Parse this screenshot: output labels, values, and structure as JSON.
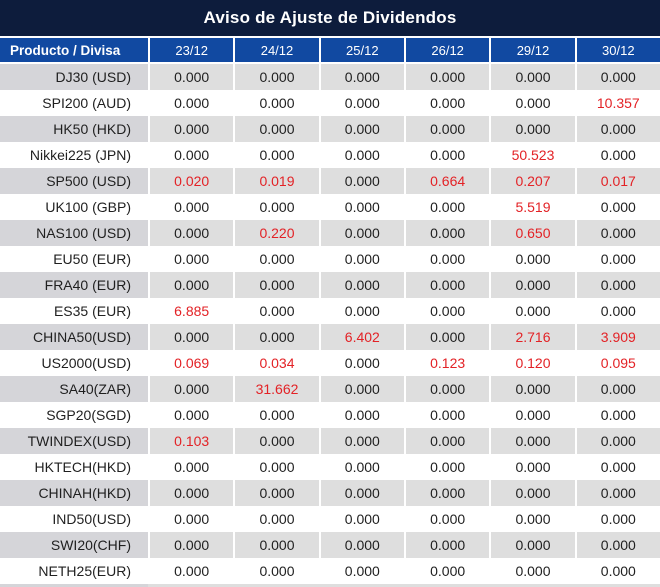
{
  "title": "Aviso de Ajuste de Dividendos",
  "colors": {
    "title_bg": "#0D1C3C",
    "header_bg": "#1149A1",
    "row_gray": "#DEDEDE",
    "row_gray_product": "#D5D5D9",
    "text_dark": "#1F1F1F",
    "value_red": "#E32226",
    "separator": "#FFFFFF"
  },
  "table": {
    "product_header": "Producto / Divisa",
    "date_headers": [
      "23/12",
      "24/12",
      "25/12",
      "26/12",
      "29/12",
      "30/12"
    ],
    "rows": [
      {
        "product": "DJ30 (USD)",
        "values": [
          "0.000",
          "0.000",
          "0.000",
          "0.000",
          "0.000",
          "0.000"
        ],
        "red_cols": []
      },
      {
        "product": "SPI200 (AUD)",
        "values": [
          "0.000",
          "0.000",
          "0.000",
          "0.000",
          "0.000",
          "10.357"
        ],
        "red_cols": [
          5
        ]
      },
      {
        "product": "HK50 (HKD)",
        "values": [
          "0.000",
          "0.000",
          "0.000",
          "0.000",
          "0.000",
          "0.000"
        ],
        "red_cols": []
      },
      {
        "product": "Nikkei225 (JPN)",
        "values": [
          "0.000",
          "0.000",
          "0.000",
          "0.000",
          "50.523",
          "0.000"
        ],
        "red_cols": [
          4
        ]
      },
      {
        "product": "SP500 (USD)",
        "values": [
          "0.020",
          "0.019",
          "0.000",
          "0.664",
          "0.207",
          "0.017"
        ],
        "red_cols": [
          0,
          1,
          3,
          4,
          5
        ]
      },
      {
        "product": "UK100 (GBP)",
        "values": [
          "0.000",
          "0.000",
          "0.000",
          "0.000",
          "5.519",
          "0.000"
        ],
        "red_cols": [
          4
        ]
      },
      {
        "product": "NAS100 (USD)",
        "values": [
          "0.000",
          "0.220",
          "0.000",
          "0.000",
          "0.650",
          "0.000"
        ],
        "red_cols": [
          1,
          4
        ]
      },
      {
        "product": "EU50 (EUR)",
        "values": [
          "0.000",
          "0.000",
          "0.000",
          "0.000",
          "0.000",
          "0.000"
        ],
        "red_cols": []
      },
      {
        "product": "FRA40 (EUR)",
        "values": [
          "0.000",
          "0.000",
          "0.000",
          "0.000",
          "0.000",
          "0.000"
        ],
        "red_cols": []
      },
      {
        "product": "ES35 (EUR)",
        "values": [
          "6.885",
          "0.000",
          "0.000",
          "0.000",
          "0.000",
          "0.000"
        ],
        "red_cols": [
          0
        ]
      },
      {
        "product": "CHINA50(USD)",
        "values": [
          "0.000",
          "0.000",
          "6.402",
          "0.000",
          "2.716",
          "3.909"
        ],
        "red_cols": [
          2,
          4,
          5
        ]
      },
      {
        "product": "US2000(USD)",
        "values": [
          "0.069",
          "0.034",
          "0.000",
          "0.123",
          "0.120",
          "0.095"
        ],
        "red_cols": [
          0,
          1,
          3,
          4,
          5
        ]
      },
      {
        "product": "SA40(ZAR)",
        "values": [
          "0.000",
          "31.662",
          "0.000",
          "0.000",
          "0.000",
          "0.000"
        ],
        "red_cols": [
          1
        ]
      },
      {
        "product": "SGP20(SGD)",
        "values": [
          "0.000",
          "0.000",
          "0.000",
          "0.000",
          "0.000",
          "0.000"
        ],
        "red_cols": []
      },
      {
        "product": "TWINDEX(USD)",
        "values": [
          "0.103",
          "0.000",
          "0.000",
          "0.000",
          "0.000",
          "0.000"
        ],
        "red_cols": [
          0
        ]
      },
      {
        "product": "HKTECH(HKD)",
        "values": [
          "0.000",
          "0.000",
          "0.000",
          "0.000",
          "0.000",
          "0.000"
        ],
        "red_cols": []
      },
      {
        "product": "CHINAH(HKD)",
        "values": [
          "0.000",
          "0.000",
          "0.000",
          "0.000",
          "0.000",
          "0.000"
        ],
        "red_cols": []
      },
      {
        "product": "IND50(USD)",
        "values": [
          "0.000",
          "0.000",
          "0.000",
          "0.000",
          "0.000",
          "0.000"
        ],
        "red_cols": []
      },
      {
        "product": "SWI20(CHF)",
        "values": [
          "0.000",
          "0.000",
          "0.000",
          "0.000",
          "0.000",
          "0.000"
        ],
        "red_cols": []
      },
      {
        "product": "NETH25(EUR)",
        "values": [
          "0.000",
          "0.000",
          "0.000",
          "0.000",
          "0.000",
          "0.000"
        ],
        "red_cols": []
      }
    ]
  }
}
